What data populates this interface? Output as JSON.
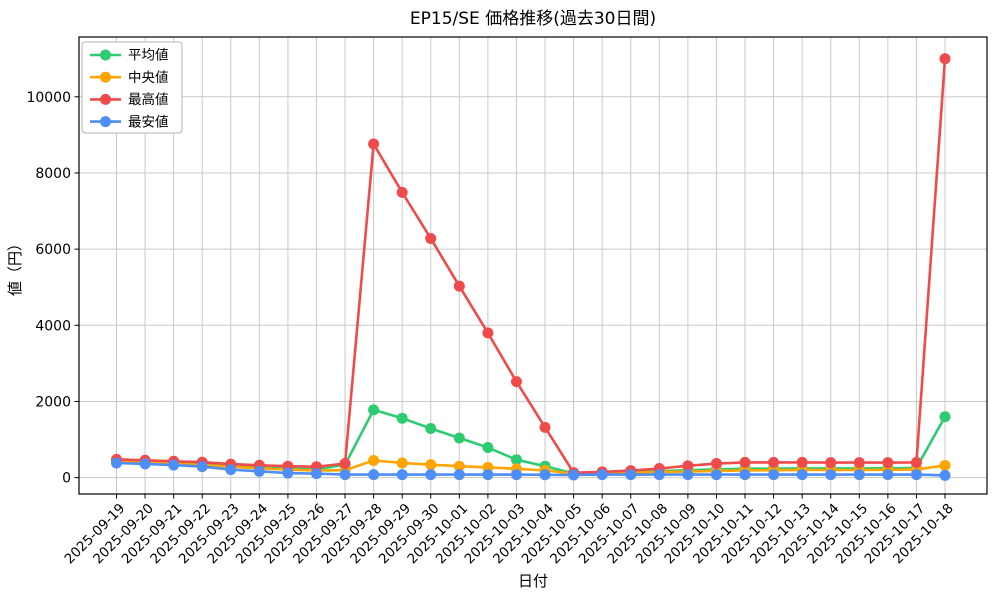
{
  "chart_data": {
    "type": "line",
    "title": "EP15/SE 価格推移(過去30日間)",
    "xlabel": "日付",
    "ylabel": "値（円）",
    "grid": true,
    "legend_position": "upper left",
    "marker": "circle",
    "ylim": [
      -430,
      11570
    ],
    "yticks": [
      0,
      2000,
      4000,
      6000,
      8000,
      10000
    ],
    "x": [
      "2025-09-19",
      "2025-09-20",
      "2025-09-21",
      "2025-09-22",
      "2025-09-23",
      "2025-09-24",
      "2025-09-25",
      "2025-09-26",
      "2025-09-27",
      "2025-09-28",
      "2025-09-29",
      "2025-09-30",
      "2025-10-01",
      "2025-10-02",
      "2025-10-03",
      "2025-10-04",
      "2025-10-05",
      "2025-10-06",
      "2025-10-07",
      "2025-10-08",
      "2025-10-09",
      "2025-10-10",
      "2025-10-11",
      "2025-10-12",
      "2025-10-13",
      "2025-10-14",
      "2025-10-15",
      "2025-10-16",
      "2025-10-17",
      "2025-10-18"
    ],
    "series": [
      {
        "key": "mean",
        "name": "平均値",
        "color": "#2ecc71",
        "values": [
          450,
          420,
          390,
          350,
          300,
          265,
          235,
          220,
          340,
          1780,
          1560,
          1290,
          1040,
          790,
          470,
          300,
          110,
          130,
          150,
          170,
          195,
          215,
          235,
          235,
          240,
          240,
          240,
          245,
          255,
          1600
        ]
      },
      {
        "key": "median",
        "name": "中央値",
        "color": "#ffa502",
        "values": [
          430,
          400,
          365,
          330,
          285,
          245,
          210,
          185,
          195,
          450,
          385,
          340,
          300,
          270,
          230,
          190,
          105,
          115,
          130,
          145,
          160,
          175,
          190,
          195,
          200,
          200,
          200,
          205,
          215,
          320
        ]
      },
      {
        "key": "max",
        "name": "最高値",
        "color": "#f04b4b",
        "values": [
          480,
          455,
          430,
          405,
          355,
          325,
          300,
          285,
          370,
          8760,
          7490,
          6280,
          5030,
          3800,
          2520,
          1320,
          130,
          150,
          185,
          240,
          310,
          370,
          400,
          400,
          400,
          395,
          395,
          395,
          400,
          11000
        ]
      },
      {
        "key": "min",
        "name": "最安値",
        "color": "#4d8ef7",
        "values": [
          385,
          360,
          330,
          290,
          210,
          165,
          120,
          105,
          80,
          80,
          80,
          80,
          80,
          80,
          80,
          75,
          70,
          80,
          80,
          80,
          80,
          80,
          80,
          80,
          80,
          80,
          80,
          80,
          80,
          60
        ]
      }
    ]
  }
}
